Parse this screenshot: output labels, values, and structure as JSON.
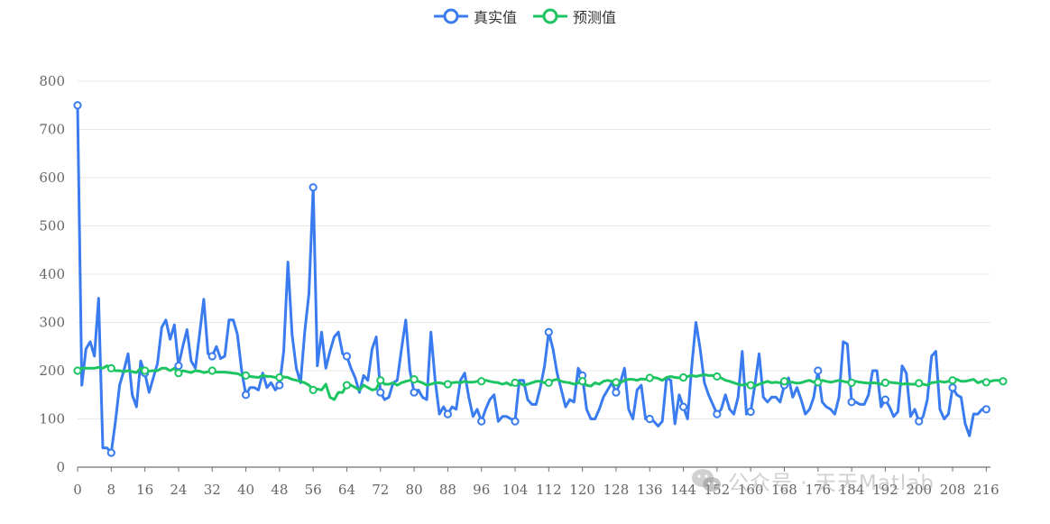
{
  "legend": {
    "series_0": "真实值",
    "series_1": "预测值"
  },
  "watermark": {
    "text": "公众号 · 天天Matlab",
    "icon": "wechat-icon"
  },
  "colors": {
    "actual": "#3a7cf0",
    "predicted": "#1cc462",
    "grid": "#e8e8ea",
    "axis": "#6e7079",
    "tick_text": "#666666"
  },
  "chart_data": {
    "type": "line",
    "title": "",
    "xlabel": "",
    "ylabel": "",
    "x": "0..217 (integer index)",
    "xtick_labels": [
      "0",
      "8",
      "16",
      "24",
      "32",
      "40",
      "48",
      "56",
      "64",
      "72",
      "80",
      "88",
      "96",
      "104",
      "112",
      "120",
      "128",
      "136",
      "144",
      "152",
      "160",
      "168",
      "176",
      "184",
      "192",
      "200",
      "208",
      "216"
    ],
    "ytick_labels": [
      "0",
      "100",
      "200",
      "300",
      "400",
      "500",
      "600",
      "700",
      "800"
    ],
    "xlim": [
      0,
      217
    ],
    "ylim": [
      0,
      800
    ],
    "grid": true,
    "legend_position": "top-center",
    "marker_every": 8,
    "series": [
      {
        "name": "真实值",
        "values": [
          750,
          170,
          245,
          260,
          230,
          350,
          40,
          40,
          30,
          95,
          170,
          200,
          235,
          150,
          125,
          220,
          195,
          155,
          185,
          215,
          290,
          305,
          265,
          295,
          210,
          250,
          285,
          220,
          205,
          275,
          348,
          235,
          230,
          250,
          225,
          230,
          305,
          305,
          275,
          200,
          150,
          165,
          165,
          160,
          195,
          165,
          175,
          160,
          170,
          240,
          425,
          275,
          205,
          175,
          280,
          360,
          580,
          210,
          280,
          205,
          240,
          270,
          280,
          235,
          230,
          205,
          185,
          155,
          190,
          180,
          245,
          270,
          155,
          140,
          145,
          175,
          180,
          245,
          305,
          200,
          155,
          160,
          145,
          140,
          280,
          180,
          110,
          125,
          110,
          125,
          120,
          180,
          195,
          145,
          105,
          120,
          95,
          120,
          140,
          150,
          95,
          105,
          105,
          100,
          95,
          180,
          180,
          140,
          130,
          130,
          165,
          210,
          280,
          245,
          195,
          160,
          125,
          140,
          135,
          205,
          190,
          120,
          100,
          100,
          120,
          145,
          160,
          175,
          155,
          175,
          205,
          120,
          100,
          160,
          170,
          100,
          100,
          95,
          85,
          95,
          185,
          180,
          90,
          150,
          125,
          100,
          210,
          300,
          245,
          175,
          150,
          130,
          110,
          120,
          150,
          120,
          110,
          145,
          240,
          110,
          115,
          170,
          235,
          145,
          135,
          145,
          145,
          135,
          170,
          185,
          145,
          165,
          140,
          110,
          120,
          145,
          200,
          135,
          125,
          120,
          110,
          145,
          260,
          255,
          135,
          135,
          130,
          130,
          150,
          200,
          200,
          125,
          140,
          125,
          105,
          115,
          210,
          195,
          105,
          120,
          95,
          105,
          140,
          230,
          240,
          120,
          100,
          110,
          165,
          150,
          145,
          90,
          65,
          110,
          110,
          120,
          120
        ]
      },
      {
        "name": "预测值",
        "values": [
          200,
          205,
          205,
          205,
          205,
          207,
          205,
          210,
          205,
          200,
          200,
          198,
          200,
          198,
          196,
          205,
          200,
          199,
          200,
          200,
          205,
          205,
          200,
          205,
          195,
          200,
          198,
          196,
          200,
          199,
          196,
          198,
          200,
          197,
          197,
          197,
          196,
          195,
          194,
          190,
          190,
          188,
          187,
          186,
          190,
          188,
          188,
          186,
          186,
          187,
          186,
          182,
          180,
          178,
          175,
          170,
          160,
          162,
          160,
          172,
          145,
          140,
          155,
          155,
          170,
          170,
          165,
          160,
          170,
          165,
          160,
          162,
          180,
          172,
          172,
          175,
          170,
          175,
          178,
          180,
          182,
          178,
          175,
          170,
          172,
          175,
          175,
          173,
          172,
          175,
          176,
          175,
          178,
          176,
          176,
          178,
          178,
          180,
          178,
          176,
          175,
          172,
          175,
          170,
          175,
          175,
          170,
          172,
          175,
          178,
          178,
          175,
          175,
          180,
          182,
          178,
          176,
          175,
          172,
          175,
          178,
          170,
          168,
          175,
          172,
          178,
          180,
          178,
          176,
          175,
          180,
          182,
          182,
          180,
          183,
          182,
          185,
          186,
          184,
          180,
          186,
          188,
          186,
          185,
          186,
          188,
          190,
          188,
          190,
          192,
          190,
          190,
          188,
          185,
          180,
          178,
          175,
          172,
          170,
          172,
          170,
          168,
          172,
          175,
          178,
          175,
          176,
          175,
          178,
          176,
          176,
          174,
          175,
          178,
          180,
          176,
          176,
          180,
          178,
          176,
          178,
          180,
          178,
          176,
          175,
          178,
          176,
          175,
          174,
          175,
          174,
          172,
          175,
          176,
          175,
          174,
          172,
          173,
          172,
          172,
          174,
          172,
          170,
          175,
          176,
          178,
          176,
          178,
          180,
          182,
          178,
          178,
          180,
          182,
          175,
          178,
          176,
          178,
          180,
          180,
          178
        ]
      }
    ]
  }
}
